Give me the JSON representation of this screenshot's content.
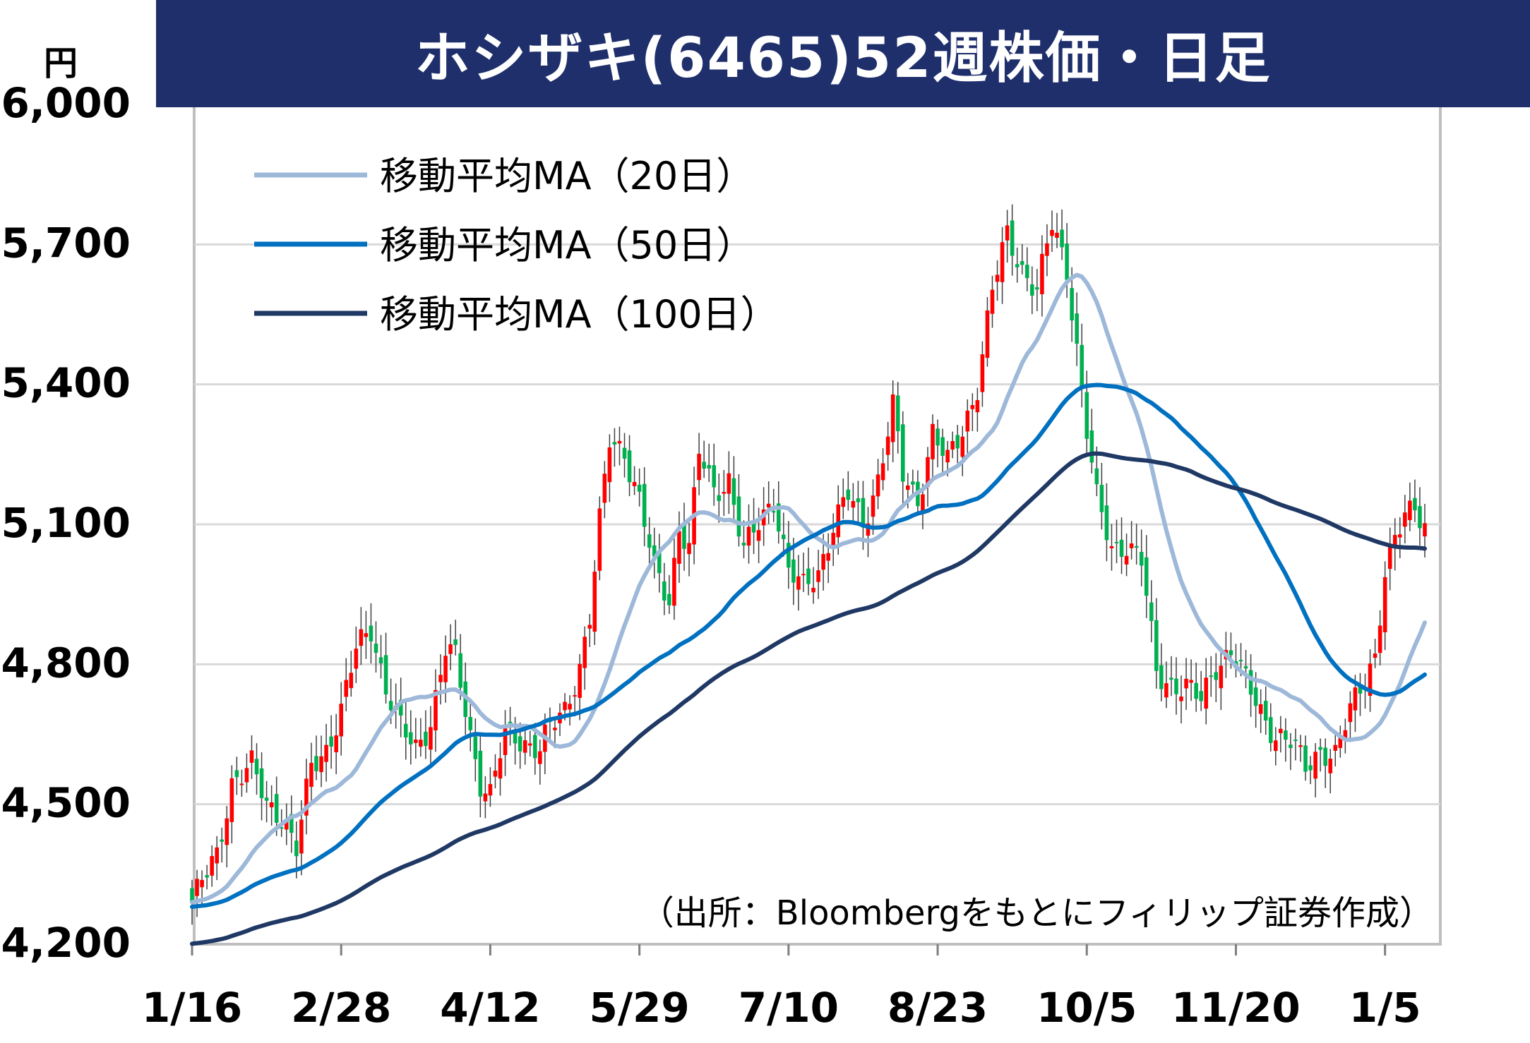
{
  "title": "ホシザキ(6465)52週株価・日足",
  "unit": "円",
  "source": "（出所：Bloombergをもとにフィリップ証券作成）",
  "colors": {
    "title_bg": "#1f2f6b",
    "up": "#ff0000",
    "down": "#00b050",
    "ma20": "#9db8d9",
    "ma50": "#0070c0",
    "ma100": "#1f3864",
    "grid": "#d9d9d9",
    "frame": "#bfbfbf"
  },
  "chart_data": {
    "type": "candlestick",
    "ylim": [
      4200,
      6000
    ],
    "yticks": [
      "4,200",
      "4,500",
      "4,800",
      "5,100",
      "5,400",
      "5,700",
      "6,000"
    ],
    "ytick_values": [
      4200,
      4500,
      4800,
      5100,
      5400,
      5700,
      6000
    ],
    "xticks": [
      "1/16",
      "2/28",
      "4/12",
      "5/29",
      "7/10",
      "8/23",
      "10/5",
      "11/20",
      "1/5"
    ],
    "xtick_index": [
      0,
      30,
      60,
      90,
      120,
      150,
      180,
      210,
      240
    ],
    "grid": true,
    "legend_position": "top-left",
    "series": [
      {
        "name": "移動平均MA（20日）",
        "key": "ma20"
      },
      {
        "name": "移動平均MA（50日）",
        "key": "ma50"
      },
      {
        "name": "移動平均MA（100日）",
        "key": "ma100"
      }
    ],
    "close_anchors": [
      [
        0,
        4290
      ],
      [
        5,
        4390
      ],
      [
        8,
        4550
      ],
      [
        12,
        4580
      ],
      [
        15,
        4500
      ],
      [
        18,
        4480
      ],
      [
        21,
        4400
      ],
      [
        24,
        4580
      ],
      [
        27,
        4620
      ],
      [
        30,
        4700
      ],
      [
        33,
        4830
      ],
      [
        36,
        4880
      ],
      [
        39,
        4750
      ],
      [
        42,
        4660
      ],
      [
        45,
        4620
      ],
      [
        48,
        4680
      ],
      [
        51,
        4830
      ],
      [
        53,
        4810
      ],
      [
        56,
        4650
      ],
      [
        58,
        4550
      ],
      [
        60,
        4520
      ],
      [
        63,
        4650
      ],
      [
        66,
        4640
      ],
      [
        70,
        4620
      ],
      [
        72,
        4660
      ],
      [
        75,
        4700
      ],
      [
        78,
        4800
      ],
      [
        80,
        4900
      ],
      [
        82,
        5100
      ],
      [
        84,
        5280
      ],
      [
        87,
        5260
      ],
      [
        90,
        5150
      ],
      [
        93,
        5000
      ],
      [
        96,
        4940
      ],
      [
        98,
        5100
      ],
      [
        100,
        5050
      ],
      [
        102,
        5250
      ],
      [
        105,
        5170
      ],
      [
        108,
        5200
      ],
      [
        111,
        5040
      ],
      [
        114,
        5100
      ],
      [
        117,
        5160
      ],
      [
        120,
        5000
      ],
      [
        123,
        4960
      ],
      [
        126,
        5000
      ],
      [
        129,
        5100
      ],
      [
        132,
        5160
      ],
      [
        135,
        5100
      ],
      [
        138,
        5200
      ],
      [
        141,
        5350
      ],
      [
        143,
        5200
      ],
      [
        146,
        5150
      ],
      [
        149,
        5300
      ],
      [
        152,
        5230
      ],
      [
        155,
        5300
      ],
      [
        158,
        5400
      ],
      [
        161,
        5600
      ],
      [
        164,
        5720
      ],
      [
        167,
        5650
      ],
      [
        170,
        5600
      ],
      [
        173,
        5740
      ],
      [
        176,
        5650
      ],
      [
        178,
        5480
      ],
      [
        180,
        5300
      ],
      [
        182,
        5150
      ],
      [
        185,
        5050
      ],
      [
        188,
        5060
      ],
      [
        191,
        5020
      ],
      [
        194,
        4780
      ],
      [
        197,
        4760
      ],
      [
        200,
        4750
      ],
      [
        203,
        4720
      ],
      [
        206,
        4800
      ],
      [
        209,
        4830
      ],
      [
        212,
        4760
      ],
      [
        215,
        4700
      ],
      [
        218,
        4650
      ],
      [
        221,
        4630
      ],
      [
        224,
        4580
      ],
      [
        227,
        4620
      ],
      [
        230,
        4600
      ],
      [
        233,
        4700
      ],
      [
        236,
        4780
      ],
      [
        238,
        4820
      ],
      [
        240,
        4990
      ],
      [
        242,
        5060
      ],
      [
        244,
        5120
      ],
      [
        246,
        5150
      ],
      [
        248,
        5100
      ]
    ],
    "n_days": 249
  }
}
